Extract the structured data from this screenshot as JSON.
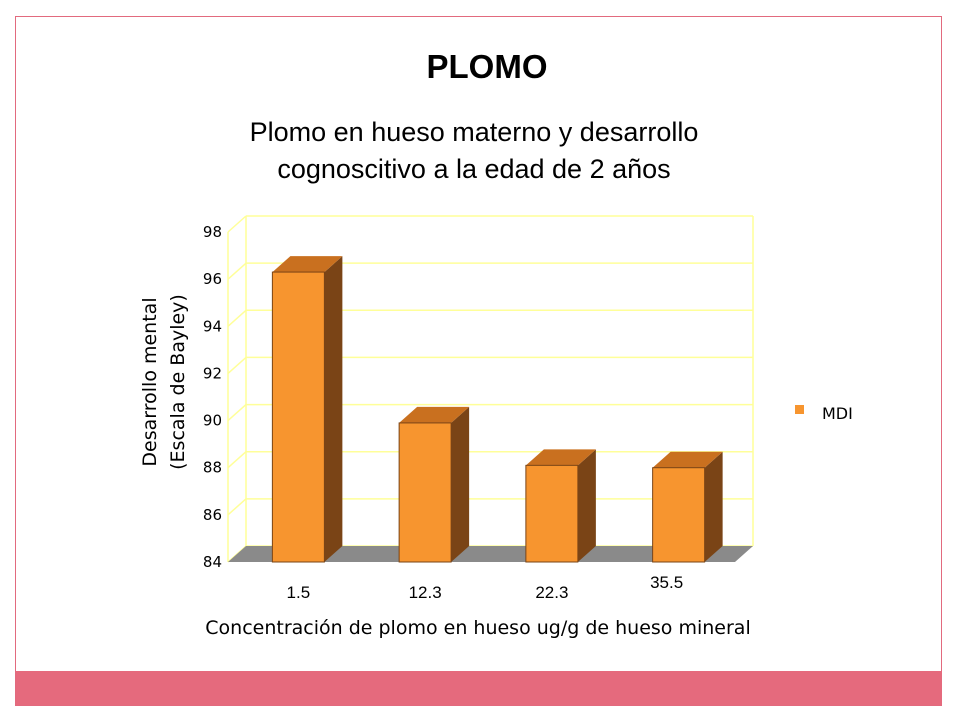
{
  "slide": {
    "title": "PLOMO",
    "subtitle_line1": "Plomo en hueso materno y desarrollo",
    "subtitle_line2": "cognoscitivo a la edad de 2 años"
  },
  "colors": {
    "frame": "#e26a7e",
    "band": "#e56a7d",
    "bar_front": "#f7952f",
    "bar_top": "#c9701f",
    "bar_side": "#7a4416",
    "floor": "#8a8a8a",
    "grid": "#ffff99"
  },
  "chart_data": {
    "type": "bar",
    "categories": [
      "1.5",
      "12.3",
      "22.3",
      "35.5"
    ],
    "series": [
      {
        "name": "MDI",
        "values": [
          96.3,
          89.9,
          88.1,
          88.0
        ]
      }
    ],
    "ylim": [
      84,
      98
    ],
    "yticks": [
      84,
      86,
      88,
      90,
      92,
      94,
      96,
      98
    ],
    "ylabel_line1": "Desarrollo mental",
    "ylabel_line2": "(Escala de Bayley)",
    "xlabel": "Concentración de plomo en hueso ug/g de hueso mineral",
    "grid": true,
    "legend_position": "right",
    "three_d": true
  }
}
